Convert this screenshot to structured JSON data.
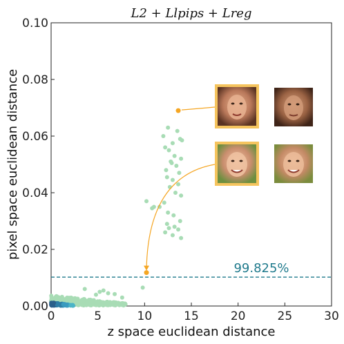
{
  "chart_data": {
    "type": "scatter",
    "title": "L2 + Llpips + Lreg",
    "xlabel": "z space euclidean distance",
    "ylabel": "pixel space euclidean distance",
    "xlim": [
      0,
      30
    ],
    "ylim": [
      0,
      0.1
    ],
    "xticks": [
      "0",
      "5",
      "10",
      "15",
      "20",
      "25",
      "30"
    ],
    "yticks": [
      "0.00",
      "0.02",
      "0.04",
      "0.06",
      "0.08",
      "0.10"
    ],
    "grid": false,
    "threshold": {
      "y": 0.0102,
      "label": "99.825%",
      "color": "#1f7a8c"
    },
    "series": [
      {
        "color": "#a8dcb5",
        "x": [
          3.6,
          5.2,
          5.6,
          6.1,
          4.8,
          6.8,
          7.6,
          9.8,
          12.0,
          12.5,
          13.0,
          13.5,
          12.2,
          13.8,
          14.0,
          12.6,
          13.2,
          13.9,
          12.8,
          13.4,
          12.9,
          12.3,
          13.7,
          12.4,
          13.0,
          13.6,
          12.7,
          13.3,
          13.9,
          12.1,
          11.0,
          11.6,
          10.2,
          10.8,
          12.5,
          13.1,
          13.8,
          12.4,
          13.2,
          12.6,
          13.6,
          12.2,
          13.0,
          13.9
        ],
        "y": [
          0.006,
          0.005,
          0.0055,
          0.0045,
          0.004,
          0.0042,
          0.003,
          0.0065,
          0.06,
          0.063,
          0.0575,
          0.0618,
          0.056,
          0.059,
          0.0585,
          0.055,
          0.053,
          0.052,
          0.051,
          0.0495,
          0.0505,
          0.048,
          0.047,
          0.0455,
          0.0445,
          0.043,
          0.042,
          0.04,
          0.039,
          0.0365,
          0.035,
          0.035,
          0.037,
          0.0345,
          0.033,
          0.032,
          0.03,
          0.029,
          0.028,
          0.0275,
          0.027,
          0.026,
          0.025,
          0.024
        ]
      }
    ],
    "highlighted_points": [
      {
        "x": 13.6,
        "y": 0.069,
        "color": "#f5a623"
      },
      {
        "x": 10.2,
        "y": 0.0118,
        "color": "#f5a623"
      }
    ],
    "image_pairs": [
      {
        "points_to": 0,
        "frame_color": "#f5c45e"
      },
      {
        "points_to": 1,
        "frame_color": "#f5c45e"
      }
    ]
  }
}
